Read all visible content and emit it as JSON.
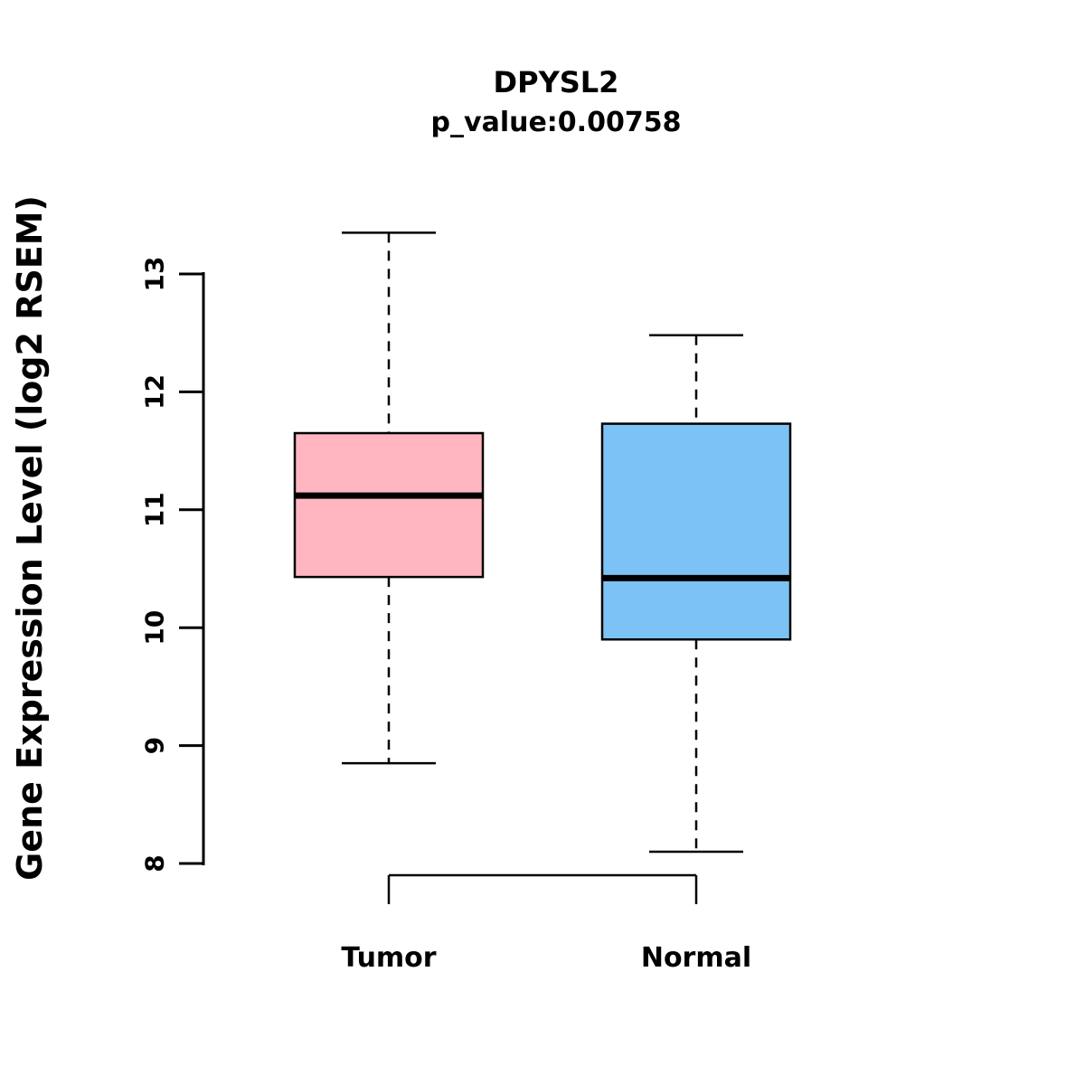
{
  "title": "DPYSL2",
  "subtitle": "p_value:0.00758",
  "ylabel": "Gene Expression Level (log2 RSEM)",
  "colors": {
    "tumor_box": "#FFB6C1",
    "normal_box": "#7CC2F4",
    "stroke": "#000000",
    "background": "#FFFFFF"
  },
  "chart_data": {
    "type": "boxplot",
    "title": "DPYSL2",
    "subtitle": "p_value:0.00758",
    "ylabel": "Gene Expression Level (log2 RSEM)",
    "xlabel": "",
    "categories": [
      "Tumor",
      "Normal"
    ],
    "yticks": [
      8,
      9,
      10,
      11,
      12,
      13
    ],
    "ylim": [
      7.8,
      13.6
    ],
    "grid": false,
    "legend": "none",
    "series": [
      {
        "name": "Tumor",
        "color": "#FFB6C1",
        "whisker_low": 8.85,
        "q1": 10.43,
        "median": 11.12,
        "q3": 11.65,
        "whisker_high": 13.35
      },
      {
        "name": "Normal",
        "color": "#7CC2F4",
        "whisker_low": 8.1,
        "q1": 9.9,
        "median": 10.42,
        "q3": 11.73,
        "whisker_high": 12.48
      }
    ]
  }
}
